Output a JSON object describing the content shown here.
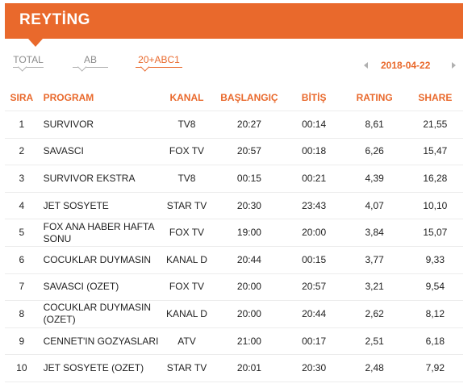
{
  "header": {
    "title": "REYTİNG"
  },
  "tabs": [
    {
      "label": "TOTAL",
      "active": false
    },
    {
      "label": "AB",
      "active": false
    },
    {
      "label": "20+ABC1",
      "active": true
    }
  ],
  "date_nav": {
    "date": "2018-04-22"
  },
  "table": {
    "columns": [
      "SIRA",
      "PROGRAM",
      "KANAL",
      "BAŞLANGIÇ",
      "BİTİŞ",
      "RATING",
      "SHARE"
    ],
    "rows": [
      {
        "sira": "1",
        "program": "SURVIVOR",
        "kanal": "TV8",
        "baslangic": "20:27",
        "bitis": "00:14",
        "rating": "8,61",
        "share": "21,55"
      },
      {
        "sira": "2",
        "program": "SAVASCI",
        "kanal": "FOX TV",
        "baslangic": "20:57",
        "bitis": "00:18",
        "rating": "6,26",
        "share": "15,47"
      },
      {
        "sira": "3",
        "program": "SURVIVOR EKSTRA",
        "kanal": "TV8",
        "baslangic": "00:15",
        "bitis": "00:21",
        "rating": "4,39",
        "share": "16,28"
      },
      {
        "sira": "4",
        "program": "JET SOSYETE",
        "kanal": "STAR TV",
        "baslangic": "20:30",
        "bitis": "23:43",
        "rating": "4,07",
        "share": "10,10"
      },
      {
        "sira": "5",
        "program": "FOX ANA HABER HAFTA SONU",
        "kanal": "FOX TV",
        "baslangic": "19:00",
        "bitis": "20:00",
        "rating": "3,84",
        "share": "15,07"
      },
      {
        "sira": "6",
        "program": "COCUKLAR DUYMASIN",
        "kanal": "KANAL D",
        "baslangic": "20:44",
        "bitis": "00:15",
        "rating": "3,77",
        "share": "9,33"
      },
      {
        "sira": "7",
        "program": "SAVASCI (OZET)",
        "kanal": "FOX TV",
        "baslangic": "20:00",
        "bitis": "20:57",
        "rating": "3,21",
        "share": "9,54"
      },
      {
        "sira": "8",
        "program": "COCUKLAR DUYMASIN (OZET)",
        "kanal": "KANAL D",
        "baslangic": "20:00",
        "bitis": "20:44",
        "rating": "2,62",
        "share": "8,12"
      },
      {
        "sira": "9",
        "program": "CENNET'IN GOZYASLARI",
        "kanal": "ATV",
        "baslangic": "21:00",
        "bitis": "00:17",
        "rating": "2,51",
        "share": "6,18"
      },
      {
        "sira": "10",
        "program": "JET SOSYETE (OZET)",
        "kanal": "STAR TV",
        "baslangic": "20:01",
        "bitis": "20:30",
        "rating": "2,48",
        "share": "7,92"
      }
    ]
  },
  "colors": {
    "accent": "#e9692c",
    "muted": "#8c8c8c"
  },
  "icons": {
    "prev": "triangle-left-icon",
    "next": "triangle-right-icon"
  }
}
